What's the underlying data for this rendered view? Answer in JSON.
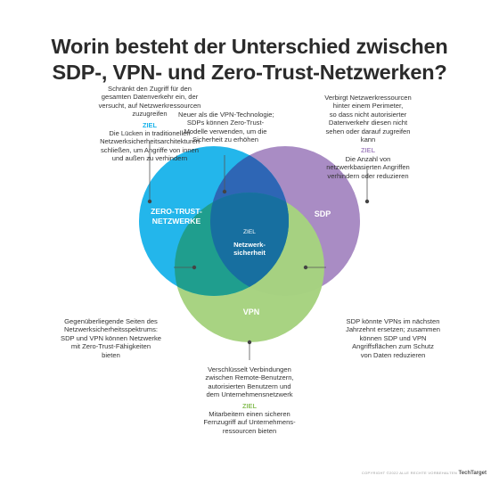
{
  "title": {
    "line1": "Worin besteht der Unterschied zwischen",
    "line2": "SDP-, VPN- und Zero-Trust-Netzwerken?"
  },
  "colors": {
    "zero_trust": "#1ab3ea",
    "sdp": "#a98cc4",
    "vpn": "#a6d27f",
    "overlap_zt_sdp": "#2e66b5",
    "overlap_zt_vpn": "#1f9e8e",
    "overlap_center": "#176fa0",
    "goal_zt": "#1ab3ea",
    "goal_sdp": "#a98cc4",
    "goal_vpn": "#8cc15c"
  },
  "circles": {
    "zero_trust": {
      "line1": "ZERO-TRUST-",
      "line2": "NETZWERKE"
    },
    "sdp": {
      "label": "SDP"
    },
    "vpn": {
      "label": "VPN"
    },
    "center": {
      "goal": "ZIEL",
      "line1": "Netzwerk-",
      "line2": "sicherheit"
    }
  },
  "notes": {
    "zero_trust": {
      "lines": [
        "Schränkt den Zugriff für den",
        "gesamten Datenverkehr ein, der",
        "versucht, auf Netzwerkressourcen",
        "zuzugreifen"
      ],
      "goal_label": "ZIEL",
      "goal_lines": [
        "Die Lücken in traditionellen",
        "Netzwerksicherheitsarchitekturen",
        "schließen, um Angriffe von innen",
        "und außen zu verhindern"
      ]
    },
    "zt_sdp": {
      "lines": [
        "Neuer als die VPN-Technologie;",
        "SDPs können Zero-Trust-",
        "Modelle verwenden, um die",
        "Sicherheit zu erhöhen"
      ]
    },
    "sdp": {
      "lines": [
        "Verbirgt Netzwerkressourcen",
        "hinter einem Perimeter,",
        "so dass nicht autorisierter",
        "Datenverkehr diesen nicht",
        "sehen oder darauf zugreifen",
        "kann"
      ],
      "goal_label": "ZIEL",
      "goal_lines": [
        "Die Anzahl von",
        "netzwerkbasierten Angriffen",
        "verhindern oder reduzieren"
      ]
    },
    "zt_vpn": {
      "lines": [
        "Gegenüberliegende Seiten des",
        "Netzwerksicherheitsspektrums:",
        "SDP und VPN können Netzwerke",
        "mit Zero-Trust-Fähigkeiten",
        "bieten"
      ]
    },
    "sdp_vpn": {
      "lines": [
        "SDP könnte VPNs im nächsten",
        "Jahrzehnt ersetzen; zusammen",
        "können SDP und VPN",
        "Angriffsflächen zum Schutz",
        "von Daten reduzieren"
      ]
    },
    "vpn": {
      "lines": [
        "Verschlüsselt Verbindungen",
        "zwischen Remote-Benutzern,",
        "autorisierten Benutzern und",
        "dem Unternehmensnetzwerk"
      ],
      "goal_label": "ZIEL",
      "goal_lines": [
        "Mitarbeitern einen sicheren",
        "Fernzugriff auf Unternehmens-",
        "ressourcen bieten"
      ]
    }
  },
  "footer": {
    "copyright": "COPYRIGHT ©2022 ALLE RECHTE VORBEHALTEN",
    "brand": "TechTarget"
  }
}
